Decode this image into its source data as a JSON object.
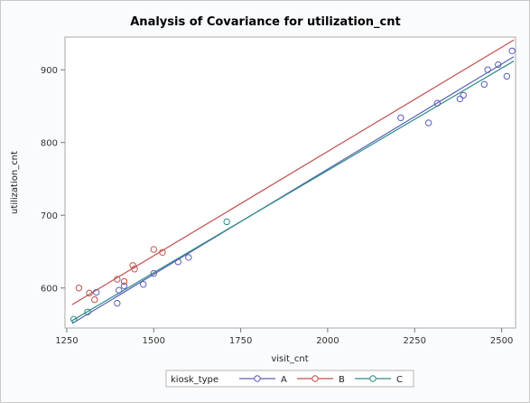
{
  "chart_data": {
    "type": "scatter",
    "title": "Analysis of Covariance for utilization_cnt",
    "xlabel": "visit_cnt",
    "ylabel": "utilization_cnt",
    "xlim": [
      1245,
      2540
    ],
    "ylim": [
      545,
      945
    ],
    "x_ticks": [
      1250,
      1500,
      1750,
      2000,
      2250,
      2500
    ],
    "y_ticks": [
      600,
      700,
      800,
      900
    ],
    "legend": {
      "title": "kiosk_type",
      "position": "bottom"
    },
    "grid": false,
    "series": [
      {
        "name": "A",
        "color": "#5b5fb8",
        "line": {
          "x": [
            1265,
            2535
          ],
          "y": [
            551,
            918
          ]
        },
        "points": [
          [
            1335,
            594
          ],
          [
            1395,
            579
          ],
          [
            1400,
            597
          ],
          [
            1415,
            603
          ],
          [
            1470,
            605
          ],
          [
            1500,
            620
          ],
          [
            1570,
            636
          ],
          [
            1600,
            642
          ],
          [
            2210,
            834
          ],
          [
            2290,
            827
          ],
          [
            2315,
            854
          ],
          [
            2380,
            860
          ],
          [
            2390,
            865
          ],
          [
            2450,
            880
          ],
          [
            2460,
            900
          ],
          [
            2490,
            907
          ],
          [
            2515,
            891
          ],
          [
            2530,
            926
          ]
        ]
      },
      {
        "name": "B",
        "color": "#c0504d",
        "line": {
          "x": [
            1265,
            2535
          ],
          "y": [
            577,
            941
          ]
        },
        "points": [
          [
            1285,
            600
          ],
          [
            1315,
            593
          ],
          [
            1330,
            584
          ],
          [
            1395,
            612
          ],
          [
            1415,
            609
          ],
          [
            1440,
            631
          ],
          [
            1445,
            626
          ],
          [
            1500,
            653
          ],
          [
            1525,
            649
          ]
        ]
      },
      {
        "name": "C",
        "color": "#2a8c85",
        "line": {
          "x": [
            1265,
            2535
          ],
          "y": [
            555,
            912
          ]
        },
        "points": [
          [
            1270,
            557
          ],
          [
            1310,
            567
          ],
          [
            1710,
            691
          ]
        ]
      }
    ]
  }
}
